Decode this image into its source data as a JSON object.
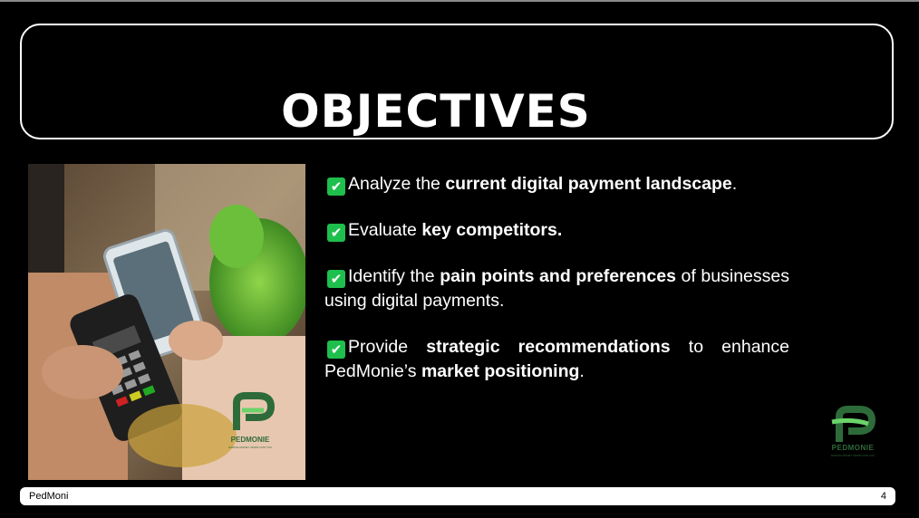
{
  "slide": {
    "title": "OBJECTIVES",
    "bullets": [
      {
        "pre": "Analyze the ",
        "bold": "current digital payment landscape",
        "post": "."
      },
      {
        "pre": "Evaluate ",
        "bold": "key competitors.",
        "post": ""
      },
      {
        "pre": "Identify the ",
        "bold": "pain points and preferences",
        "post": " of businesses using digital payments."
      },
      {
        "pre": "Provide ",
        "bold": "strategic recommendations",
        "post": " to enhance PedMonie’s ",
        "bold2": "market positioning",
        "post2": "."
      }
    ],
    "check_icon": "✔",
    "check_color": "#1fbf4d"
  },
  "logo": {
    "name": "PEDMONIE",
    "tagline": "MAKING MONEY WORK FOR YOU",
    "color_dark": "#2e6b3a",
    "color_light": "#6ad36a"
  },
  "footer": {
    "left": "PedMoni",
    "right": "4"
  }
}
